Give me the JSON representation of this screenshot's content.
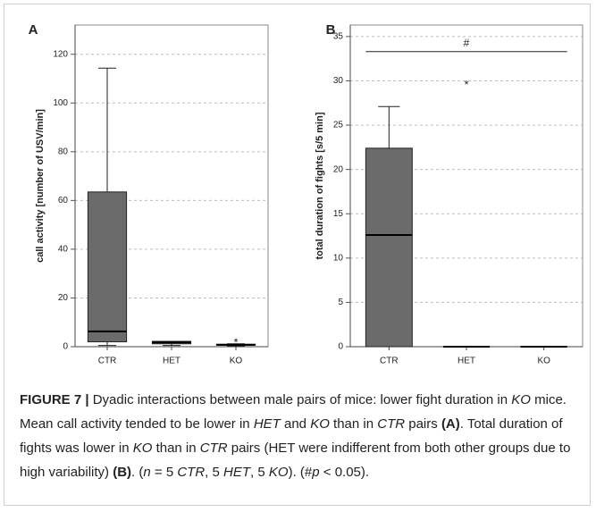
{
  "chart_data": [
    {
      "type": "box",
      "panel_label": "A",
      "y_label": "call activity [number of USV/min]",
      "categories": [
        "CTR",
        "HET",
        "KO"
      ],
      "boxes": [
        {
          "min": 0.5,
          "q1": 2,
          "median": 6.3,
          "q3": 63.5,
          "max": 114.3,
          "outliers": []
        },
        {
          "min": 0.5,
          "q1": 1.2,
          "median": 1.8,
          "q3": 2.2,
          "max": 2.2,
          "outliers": []
        },
        {
          "min": 0.3,
          "q1": 0.6,
          "median": 0.8,
          "q3": 1,
          "max": 1.2,
          "outliers": [
            2.6
          ]
        }
      ],
      "outlier_marker": "*",
      "color": "#6b6b6b",
      "ylim": [
        0,
        132
      ],
      "yticks": [
        0,
        20,
        40,
        60,
        80,
        100,
        120
      ],
      "grid": true
    },
    {
      "type": "box",
      "panel_label": "B",
      "y_label": "total duration of fights [s/5 min]",
      "categories": [
        "CTR",
        "HET",
        "KO"
      ],
      "boxes": [
        {
          "min": 0,
          "q1": 0,
          "median": 12.6,
          "q3": 22.4,
          "max": 27.1,
          "outliers": []
        },
        {
          "min": 0,
          "q1": 0,
          "median": 0,
          "q3": 0,
          "max": 0,
          "outliers": [
            29.8
          ]
        },
        {
          "min": 0,
          "q1": 0,
          "median": 0,
          "q3": 0,
          "max": 0,
          "outliers": []
        }
      ],
      "outlier_marker": "*",
      "color": "#6b6b6b",
      "significance": {
        "from": "CTR",
        "to": "KO",
        "y": 33.3,
        "label": "#"
      },
      "ylim": [
        0,
        36.3
      ],
      "yticks": [
        0,
        5,
        10,
        15,
        20,
        25,
        30,
        35
      ],
      "grid": true
    }
  ],
  "caption": [
    "FIGURE 7 |",
    " Dyadic interactions between male pairs of mice: lower fight duration in ",
    "KO",
    " mice. Mean call activity tended to be lower in ",
    "HET",
    " and ",
    "KO",
    " than in ",
    "CTR",
    " pairs ",
    "(A)",
    ". Total duration of fights was lower in ",
    "KO",
    " than in ",
    "CTR",
    " pairs (HET were indifferent from both other groups due to high variability) ",
    "(B)",
    ". (",
    "n",
    " = 5 ",
    "CTR",
    ", 5 ",
    "HET",
    ", 5 ",
    "KO",
    "). (#",
    "p",
    " < 0.05)."
  ]
}
